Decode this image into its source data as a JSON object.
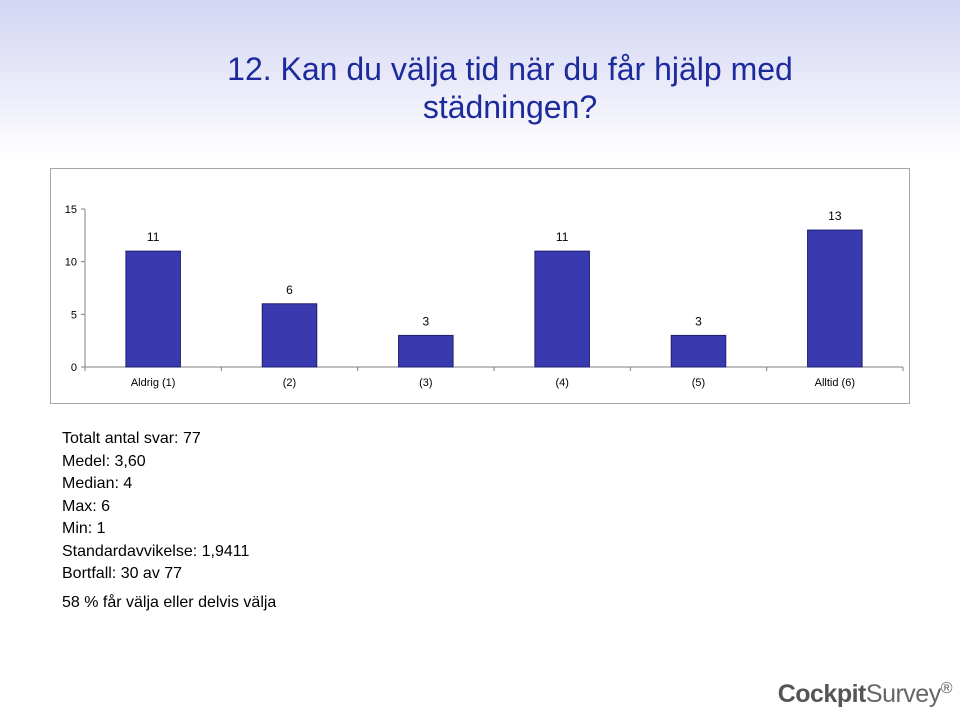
{
  "slide": {
    "title": "12. Kan du välja tid när du får hjälp med städningen?"
  },
  "chart_data": {
    "type": "bar",
    "categories": [
      "Aldrig (1)",
      "(2)",
      "(3)",
      "(4)",
      "(5)",
      "Alltid (6)"
    ],
    "values": [
      11,
      6,
      3,
      11,
      3,
      13
    ],
    "data_labels": [
      "11",
      "6",
      "3",
      "11",
      "3",
      "13"
    ],
    "ylim": [
      0,
      15
    ],
    "yticks": [
      0,
      5,
      10,
      15
    ],
    "grid": false,
    "bar_color": "#3a3ab0",
    "title": "",
    "xlabel": "",
    "ylabel": ""
  },
  "stats": {
    "lines": [
      "Totalt antal svar: 77",
      "Medel: 3,60",
      "Median: 4",
      "Max: 6",
      "Min: 1",
      "Standardavvikelse: 1,9411",
      "Bortfall: 30 av 77"
    ],
    "note": "58 % får välja eller delvis välja"
  },
  "brand": {
    "part1": "Cockpit",
    "part2": "Survey",
    "reg": "®"
  }
}
